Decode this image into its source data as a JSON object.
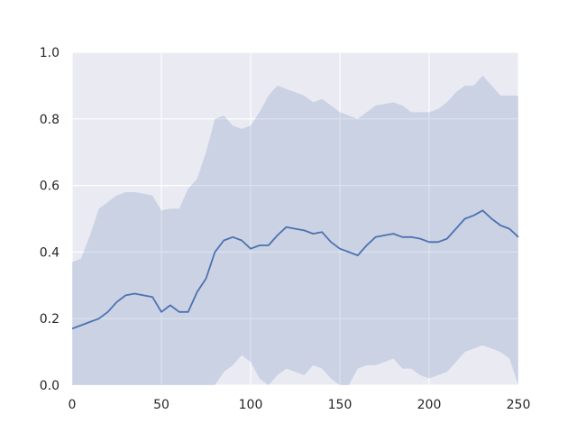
{
  "chart_data": {
    "type": "area",
    "title": "",
    "xlabel": "",
    "ylabel": "",
    "xlim": [
      0,
      250
    ],
    "ylim": [
      0.0,
      1.0
    ],
    "grid": true,
    "xticks": [
      0,
      50,
      100,
      150,
      200,
      250
    ],
    "yticks": [
      0.0,
      0.2,
      0.4,
      0.6,
      0.8,
      1.0
    ],
    "xtick_labels": [
      "0",
      "50",
      "100",
      "150",
      "200",
      "250"
    ],
    "ytick_labels": [
      "0.0",
      "0.2",
      "0.4",
      "0.6",
      "0.8",
      "1.0"
    ],
    "colors": {
      "plot_bg": "#EAEAF2",
      "grid": "#FFFFFF",
      "line": "#4C72B0",
      "band": "#4C72B0"
    },
    "series": [
      {
        "x": [
          0,
          5,
          10,
          15,
          20,
          25,
          30,
          35,
          40,
          45,
          50,
          55,
          60,
          65,
          70,
          75,
          80,
          85,
          90,
          95,
          100,
          105,
          110,
          115,
          120,
          125,
          130,
          135,
          140,
          145,
          150,
          155,
          160,
          165,
          170,
          175,
          180,
          185,
          190,
          195,
          200,
          205,
          210,
          215,
          220,
          225,
          230,
          235,
          240,
          245,
          250
        ],
        "mean": [
          0.17,
          0.18,
          0.19,
          0.2,
          0.22,
          0.25,
          0.27,
          0.275,
          0.27,
          0.265,
          0.22,
          0.24,
          0.22,
          0.22,
          0.28,
          0.32,
          0.4,
          0.435,
          0.445,
          0.435,
          0.41,
          0.42,
          0.42,
          0.45,
          0.475,
          0.47,
          0.465,
          0.455,
          0.46,
          0.43,
          0.41,
          0.4,
          0.39,
          0.42,
          0.445,
          0.45,
          0.455,
          0.445,
          0.445,
          0.44,
          0.43,
          0.43,
          0.44,
          0.47,
          0.5,
          0.51,
          0.525,
          0.5,
          0.48,
          0.47,
          0.445
        ],
        "upper": [
          0.37,
          0.38,
          0.45,
          0.53,
          0.55,
          0.57,
          0.58,
          0.58,
          0.575,
          0.57,
          0.525,
          0.53,
          0.53,
          0.59,
          0.62,
          0.7,
          0.8,
          0.81,
          0.78,
          0.77,
          0.78,
          0.82,
          0.87,
          0.9,
          0.89,
          0.88,
          0.87,
          0.85,
          0.86,
          0.84,
          0.82,
          0.81,
          0.8,
          0.82,
          0.84,
          0.845,
          0.85,
          0.84,
          0.82,
          0.82,
          0.82,
          0.83,
          0.85,
          0.88,
          0.9,
          0.9,
          0.93,
          0.9,
          0.87,
          0.87,
          0.87
        ],
        "lower": [
          0.0,
          0.0,
          0.0,
          0.0,
          0.0,
          0.0,
          0.0,
          0.0,
          0.0,
          0.0,
          0.0,
          0.0,
          0.0,
          0.0,
          0.0,
          0.0,
          0.0,
          0.04,
          0.06,
          0.09,
          0.07,
          0.02,
          0.0,
          0.03,
          0.05,
          0.04,
          0.03,
          0.06,
          0.05,
          0.02,
          0.0,
          0.0,
          0.05,
          0.06,
          0.06,
          0.07,
          0.08,
          0.05,
          0.05,
          0.03,
          0.02,
          0.03,
          0.04,
          0.07,
          0.1,
          0.11,
          0.12,
          0.11,
          0.1,
          0.08,
          0.0
        ]
      }
    ]
  }
}
